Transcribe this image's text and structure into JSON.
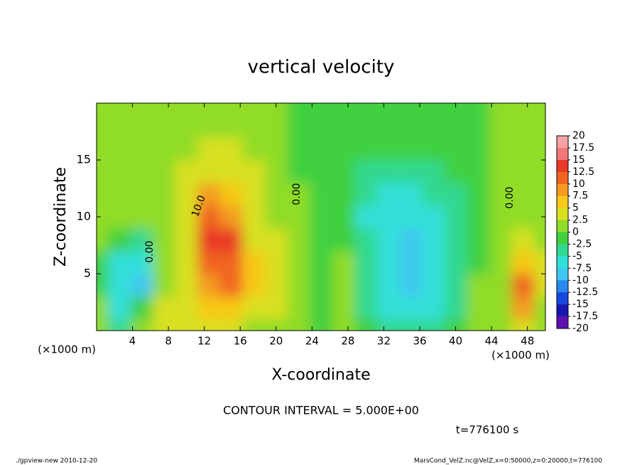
{
  "chart_data": {
    "type": "contour",
    "title": "vertical velocity",
    "x_label": "X-coordinate",
    "y_label": "Z-coordinate",
    "x_unit": "(×1000 m)",
    "y_unit": "(×1000 m)",
    "xlim": [
      0,
      50
    ],
    "ylim": [
      0,
      20
    ],
    "xticks": [
      4,
      8,
      12,
      16,
      20,
      24,
      28,
      32,
      36,
      40,
      44,
      48
    ],
    "yticks": [
      5,
      10,
      15
    ],
    "x": [
      0,
      2.5,
      5,
      7.5,
      10,
      12.5,
      15,
      17.5,
      20,
      22.5,
      25,
      27.5,
      30,
      32.5,
      35,
      37.5,
      40,
      42.5,
      45,
      47.5,
      50
    ],
    "y": [
      0,
      2,
      4,
      6,
      8,
      10,
      12,
      14,
      16,
      18,
      20
    ],
    "z": [
      [
        1,
        -4,
        1,
        3,
        3,
        5,
        4,
        2,
        2,
        1,
        0,
        1,
        -2,
        -3,
        -4,
        -3,
        -1,
        1,
        1,
        3,
        1
      ],
      [
        1,
        -5,
        -2,
        3,
        5,
        7,
        6,
        5,
        3,
        1,
        0,
        1,
        -4,
        -5,
        -7,
        -5,
        -3,
        1,
        2,
        9,
        2
      ],
      [
        0,
        -6,
        -9,
        2,
        5,
        9,
        11,
        6,
        4,
        1,
        0,
        1,
        -4,
        -6,
        -8,
        -6,
        -3,
        1,
        2,
        11,
        3
      ],
      [
        0,
        -5,
        -7,
        2,
        5,
        11,
        12,
        6,
        3,
        1,
        0,
        1,
        -4,
        -6,
        -9,
        -7,
        -4,
        0,
        2,
        6,
        3
      ],
      [
        1,
        -2,
        -3,
        2,
        5,
        13,
        15,
        5,
        3,
        1,
        0,
        0,
        -4,
        -6,
        -8,
        -6,
        -4,
        0,
        1,
        4,
        2
      ],
      [
        1,
        1,
        1,
        2,
        5,
        11,
        9,
        4,
        2,
        1,
        0,
        -2,
        -5,
        -6,
        -6,
        -5,
        -4,
        0,
        1,
        2,
        1
      ],
      [
        1,
        1,
        1,
        2,
        4,
        8,
        7,
        4,
        2,
        1,
        0,
        -2,
        -4,
        -5,
        -5,
        -4,
        -3,
        0,
        1,
        2,
        1
      ],
      [
        1,
        1,
        1,
        1,
        3,
        5,
        5,
        3,
        1,
        0,
        0,
        -2,
        -3,
        -4,
        -3,
        -3,
        -1,
        0,
        1,
        1,
        1
      ],
      [
        1,
        1,
        1,
        1,
        2,
        3,
        3,
        2,
        1,
        0,
        0,
        -1,
        -2,
        -2,
        -1,
        0,
        0,
        0,
        1,
        1,
        1
      ],
      [
        1,
        1,
        1,
        1,
        1,
        1,
        1,
        1,
        1,
        0,
        0,
        0,
        0,
        0,
        0,
        0,
        0,
        0,
        1,
        1,
        1
      ],
      [
        1,
        1,
        1,
        1,
        1,
        1,
        1,
        1,
        1,
        0,
        0,
        0,
        0,
        0,
        0,
        0,
        0,
        0,
        1,
        1,
        1
      ]
    ],
    "levels": [
      20,
      17.5,
      15,
      12.5,
      10,
      7.5,
      5,
      2.5,
      0,
      -2.5,
      -5,
      -7.5,
      -10,
      -12.5,
      -15,
      -17.5,
      -20
    ],
    "colors": [
      "#f4a3a3",
      "#f07878",
      "#e83828",
      "#f06420",
      "#f49a20",
      "#f8c818",
      "#d8e020",
      "#90dc28",
      "#40d040",
      "#30d890",
      "#30e0d8",
      "#40c8f0",
      "#2888f0",
      "#1848e0",
      "#1818b0",
      "#6010b0"
    ],
    "contour_labels": [
      "10.0",
      "0.00",
      "0.00",
      "0.00"
    ],
    "contour_interval": "CONTOUR INTERVAL = 5.000E+00",
    "time": "t=776100 s",
    "footer_left": "./gpview-new  2010-12-20",
    "footer_right": "MarsCond_VelZ.nc@VelZ,x=0:50000,z=0:20000,t=776100"
  }
}
